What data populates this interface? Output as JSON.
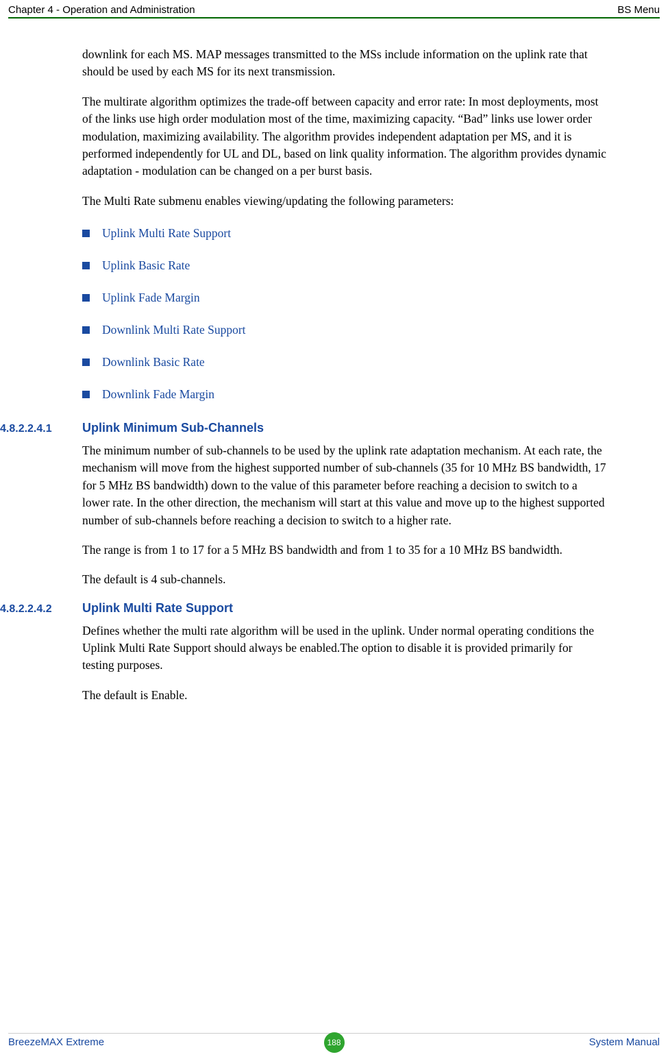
{
  "header": {
    "left": "Chapter 4 - Operation and Administration",
    "right": "BS Menu"
  },
  "body": {
    "p1": "downlink for each MS. MAP messages transmitted to the MSs include information on the uplink rate that should be used by each MS for its next transmission.",
    "p2": "The multirate algorithm optimizes the trade-off between capacity and error rate: In most deployments, most of the links use high order modulation most of the time, maximizing capacity. “Bad” links use lower order modulation, maximizing availability. The algorithm provides independent adaptation per MS, and it is performed independently for UL and DL, based on link quality information. The algorithm provides dynamic adaptation - modulation can be changed on a per burst basis.",
    "p3": "The Multi Rate submenu enables viewing/updating the following parameters:",
    "bullets": [
      "Uplink Multi Rate Support",
      "Uplink Basic Rate",
      "Uplink Fade Margin",
      "Downlink Multi Rate Support",
      "Downlink Basic Rate",
      "Downlink Fade Margin"
    ],
    "sec1": {
      "num": "4.8.2.2.4.1",
      "title": "Uplink Minimum Sub-Channels",
      "p1": "The minimum number of sub-channels to be used by the uplink rate adaptation mechanism. At each rate, the mechanism will move from the highest supported number of sub-channels (35 for 10 MHz BS bandwidth, 17 for 5 MHz BS bandwidth) down to the value of this parameter before reaching a decision to switch to a lower rate. In the other direction, the mechanism will start at this value and move up to the highest supported number of sub-channels before reaching a decision to switch to a higher rate.",
      "p2": "The range is from 1 to 17 for a 5 MHz BS bandwidth and from 1 to 35 for a 10 MHz BS bandwidth.",
      "p3": "The default is 4 sub-channels."
    },
    "sec2": {
      "num": "4.8.2.2.4.2",
      "title": "Uplink Multi Rate Support",
      "p1": "Defines whether the multi rate algorithm will be used in the uplink. Under normal operating conditions the Uplink Multi Rate Support should always be enabled.The option to disable it is provided primarily for testing purposes.",
      "p2": "The default is Enable."
    }
  },
  "footer": {
    "left": "BreezeMAX Extreme",
    "page": "188",
    "right": "System Manual"
  }
}
